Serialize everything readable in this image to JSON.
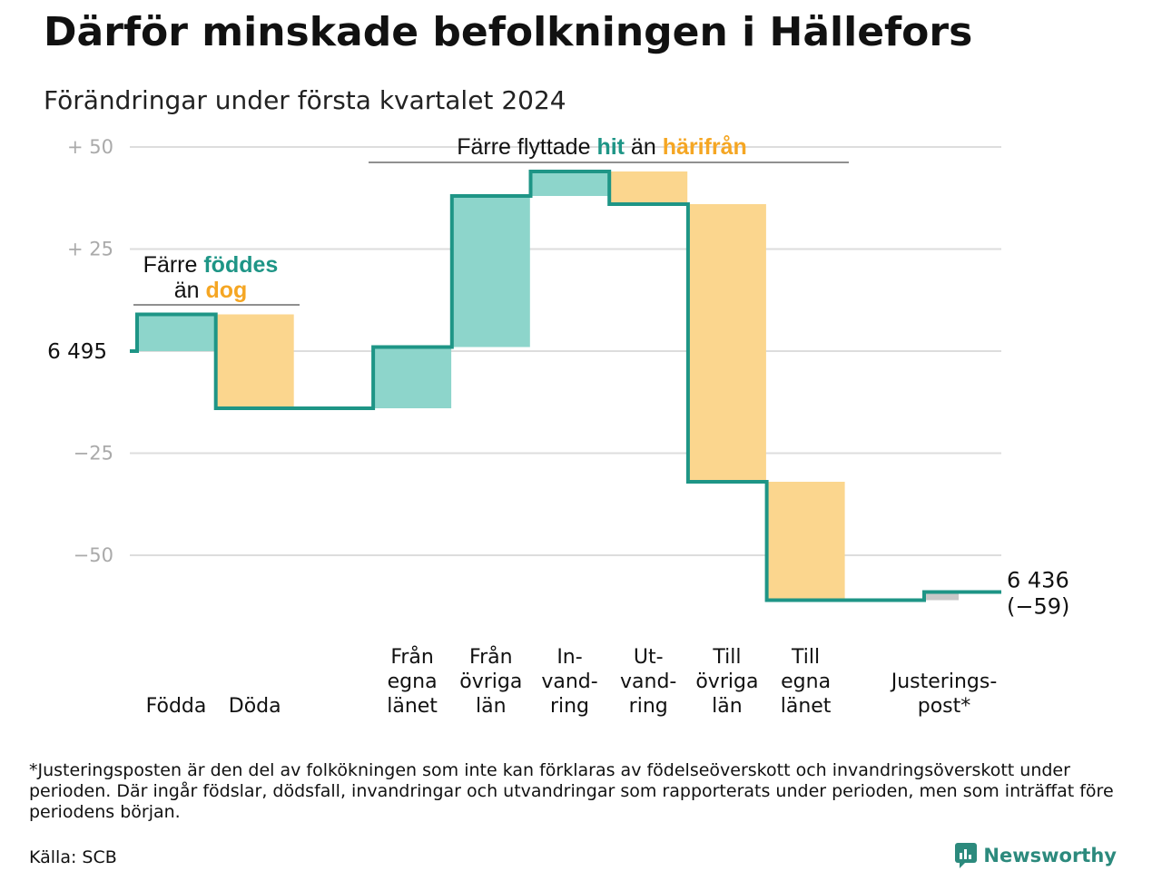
{
  "title": "Därför minskade befolkningen i Hällefors",
  "subtitle": "Förändringar under första kvartalet 2024",
  "colors": {
    "increase": "#8dd5cb",
    "decrease": "#fbd68e",
    "adjustment": "#c8c8c8",
    "line": "#1e9586",
    "highlight_teal": "#1e9586",
    "highlight_orange": "#f5a623",
    "grid": "#dddddd",
    "tick": "#aaaaaa"
  },
  "chart_data": {
    "type": "waterfall",
    "start_label": "6 495",
    "end_label": "6 436",
    "end_change_label": "(−59)",
    "start_value": 6495,
    "end_value": 6436,
    "y_ticks": [
      {
        "value": 50,
        "label": "+  50"
      },
      {
        "value": 25,
        "label": "+  25"
      },
      {
        "value": -25,
        "label": "−25"
      },
      {
        "value": -50,
        "label": "−50"
      }
    ],
    "ylim": [
      -62,
      52
    ],
    "steps": [
      {
        "name": "Födda",
        "label_lines": [
          "Födda"
        ],
        "change": 9,
        "kind": "increase"
      },
      {
        "name": "Döda",
        "label_lines": [
          "Döda"
        ],
        "change": -23,
        "kind": "decrease"
      },
      {
        "name": "gap",
        "label_lines": [],
        "change": 0,
        "kind": "gap"
      },
      {
        "name": "Från egna länet",
        "label_lines": [
          "Från",
          "egna",
          "länet"
        ],
        "change": 15,
        "kind": "increase"
      },
      {
        "name": "Från övriga län",
        "label_lines": [
          "Från",
          "övriga",
          "län"
        ],
        "change": 37,
        "kind": "increase"
      },
      {
        "name": "Invandring",
        "label_lines": [
          "In-",
          "vand-",
          "ring"
        ],
        "change": 6,
        "kind": "increase"
      },
      {
        "name": "Utvandring",
        "label_lines": [
          "Ut-",
          "vand-",
          "ring"
        ],
        "change": -8,
        "kind": "decrease"
      },
      {
        "name": "Till övriga län",
        "label_lines": [
          "Till",
          "övriga",
          "län"
        ],
        "change": -68,
        "kind": "decrease"
      },
      {
        "name": "Till egna länet",
        "label_lines": [
          "Till",
          "egna",
          "länet"
        ],
        "change": -29,
        "kind": "decrease"
      },
      {
        "name": "gap",
        "label_lines": [],
        "change": 0,
        "kind": "gap"
      },
      {
        "name": "Justeringspost*",
        "label_lines": [
          "Justerings-",
          "post*"
        ],
        "change": 2,
        "kind": "adjustment"
      }
    ],
    "annotations": [
      {
        "id": "births",
        "parts": [
          {
            "line": 1,
            "text": "Färre ",
            "style": "normal"
          },
          {
            "line": 1,
            "text": "föddes",
            "style": "teal"
          },
          {
            "line": 2,
            "text": "än ",
            "style": "normal"
          },
          {
            "line": 2,
            "text": "dog",
            "style": "orange"
          }
        ]
      },
      {
        "id": "migration",
        "parts": [
          {
            "line": 1,
            "text": "Färre flyttade ",
            "style": "normal"
          },
          {
            "line": 1,
            "text": "hit",
            "style": "teal"
          },
          {
            "line": 1,
            "text": " än ",
            "style": "normal"
          },
          {
            "line": 1,
            "text": "härifrån",
            "style": "orange"
          }
        ]
      }
    ]
  },
  "footnote": "*Justeringsposten är den del av folkökningen som inte kan förklaras av födelseöverskott och invandringsöverskott under perioden. Där ingår födslar, dödsfall, invandringar och utvandringar som rapporterats under perioden, men som inträffat före periodens början.",
  "source": "Källa: SCB",
  "brand": {
    "name": "Newsworthy",
    "icon": "newsworthy-logo-icon"
  }
}
